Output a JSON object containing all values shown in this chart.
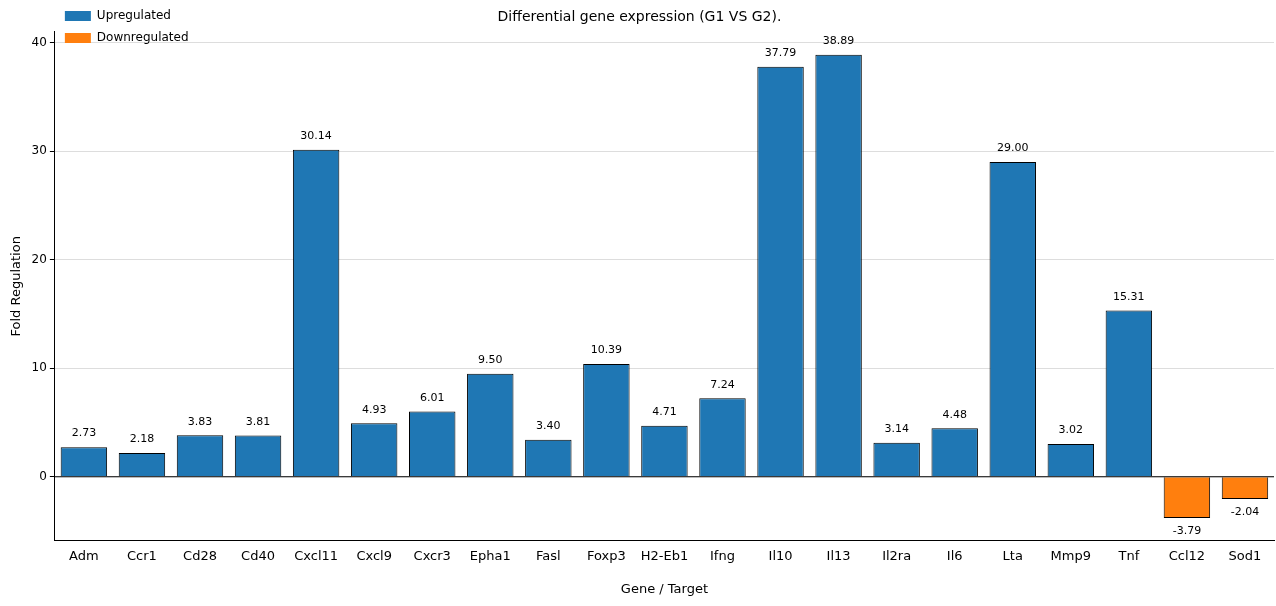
{
  "chart_data": {
    "type": "bar",
    "title": "Differential gene expression (G1 VS G2).",
    "xlabel": "Gene / Target",
    "ylabel": "Fold Regulation",
    "categories": [
      "Adm",
      "Ccr1",
      "Cd28",
      "Cd40",
      "Cxcl11",
      "Cxcl9",
      "Cxcr3",
      "Epha1",
      "Fasl",
      "Foxp3",
      "H2-Eb1",
      "Ifng",
      "Il10",
      "Il13",
      "Il2ra",
      "Il6",
      "Lta",
      "Mmp9",
      "Tnf",
      "Ccl12",
      "Sod1"
    ],
    "series": [
      {
        "name": "Upregulated",
        "color": "#1f77b4",
        "values": [
          2.73,
          2.18,
          3.83,
          3.81,
          30.14,
          4.93,
          6.01,
          9.5,
          3.4,
          10.39,
          4.71,
          7.24,
          37.79,
          38.89,
          3.14,
          4.48,
          29.0,
          3.02,
          15.31,
          null,
          null
        ]
      },
      {
        "name": "Downregulated",
        "color": "#ff7f0e",
        "values": [
          null,
          null,
          null,
          null,
          null,
          null,
          null,
          null,
          null,
          null,
          null,
          null,
          null,
          null,
          null,
          null,
          null,
          null,
          null,
          -3.79,
          -2.04
        ]
      }
    ],
    "value_labels": [
      "2.73",
      "2.18",
      "3.83",
      "3.81",
      "30.14",
      "4.93",
      "6.01",
      "9.50",
      "3.40",
      "10.39",
      "4.71",
      "7.24",
      "37.79",
      "38.89",
      "3.14",
      "4.48",
      "29.00",
      "3.02",
      "15.31",
      "-3.79",
      "-2.04"
    ],
    "ylim": [
      -5.9,
      41
    ],
    "yticks": [
      0,
      10,
      20,
      30,
      40
    ],
    "ref_lines": [
      {
        "axis": "y",
        "value": 0,
        "color": "#000000"
      }
    ],
    "grid": "y",
    "legend": "top left"
  }
}
